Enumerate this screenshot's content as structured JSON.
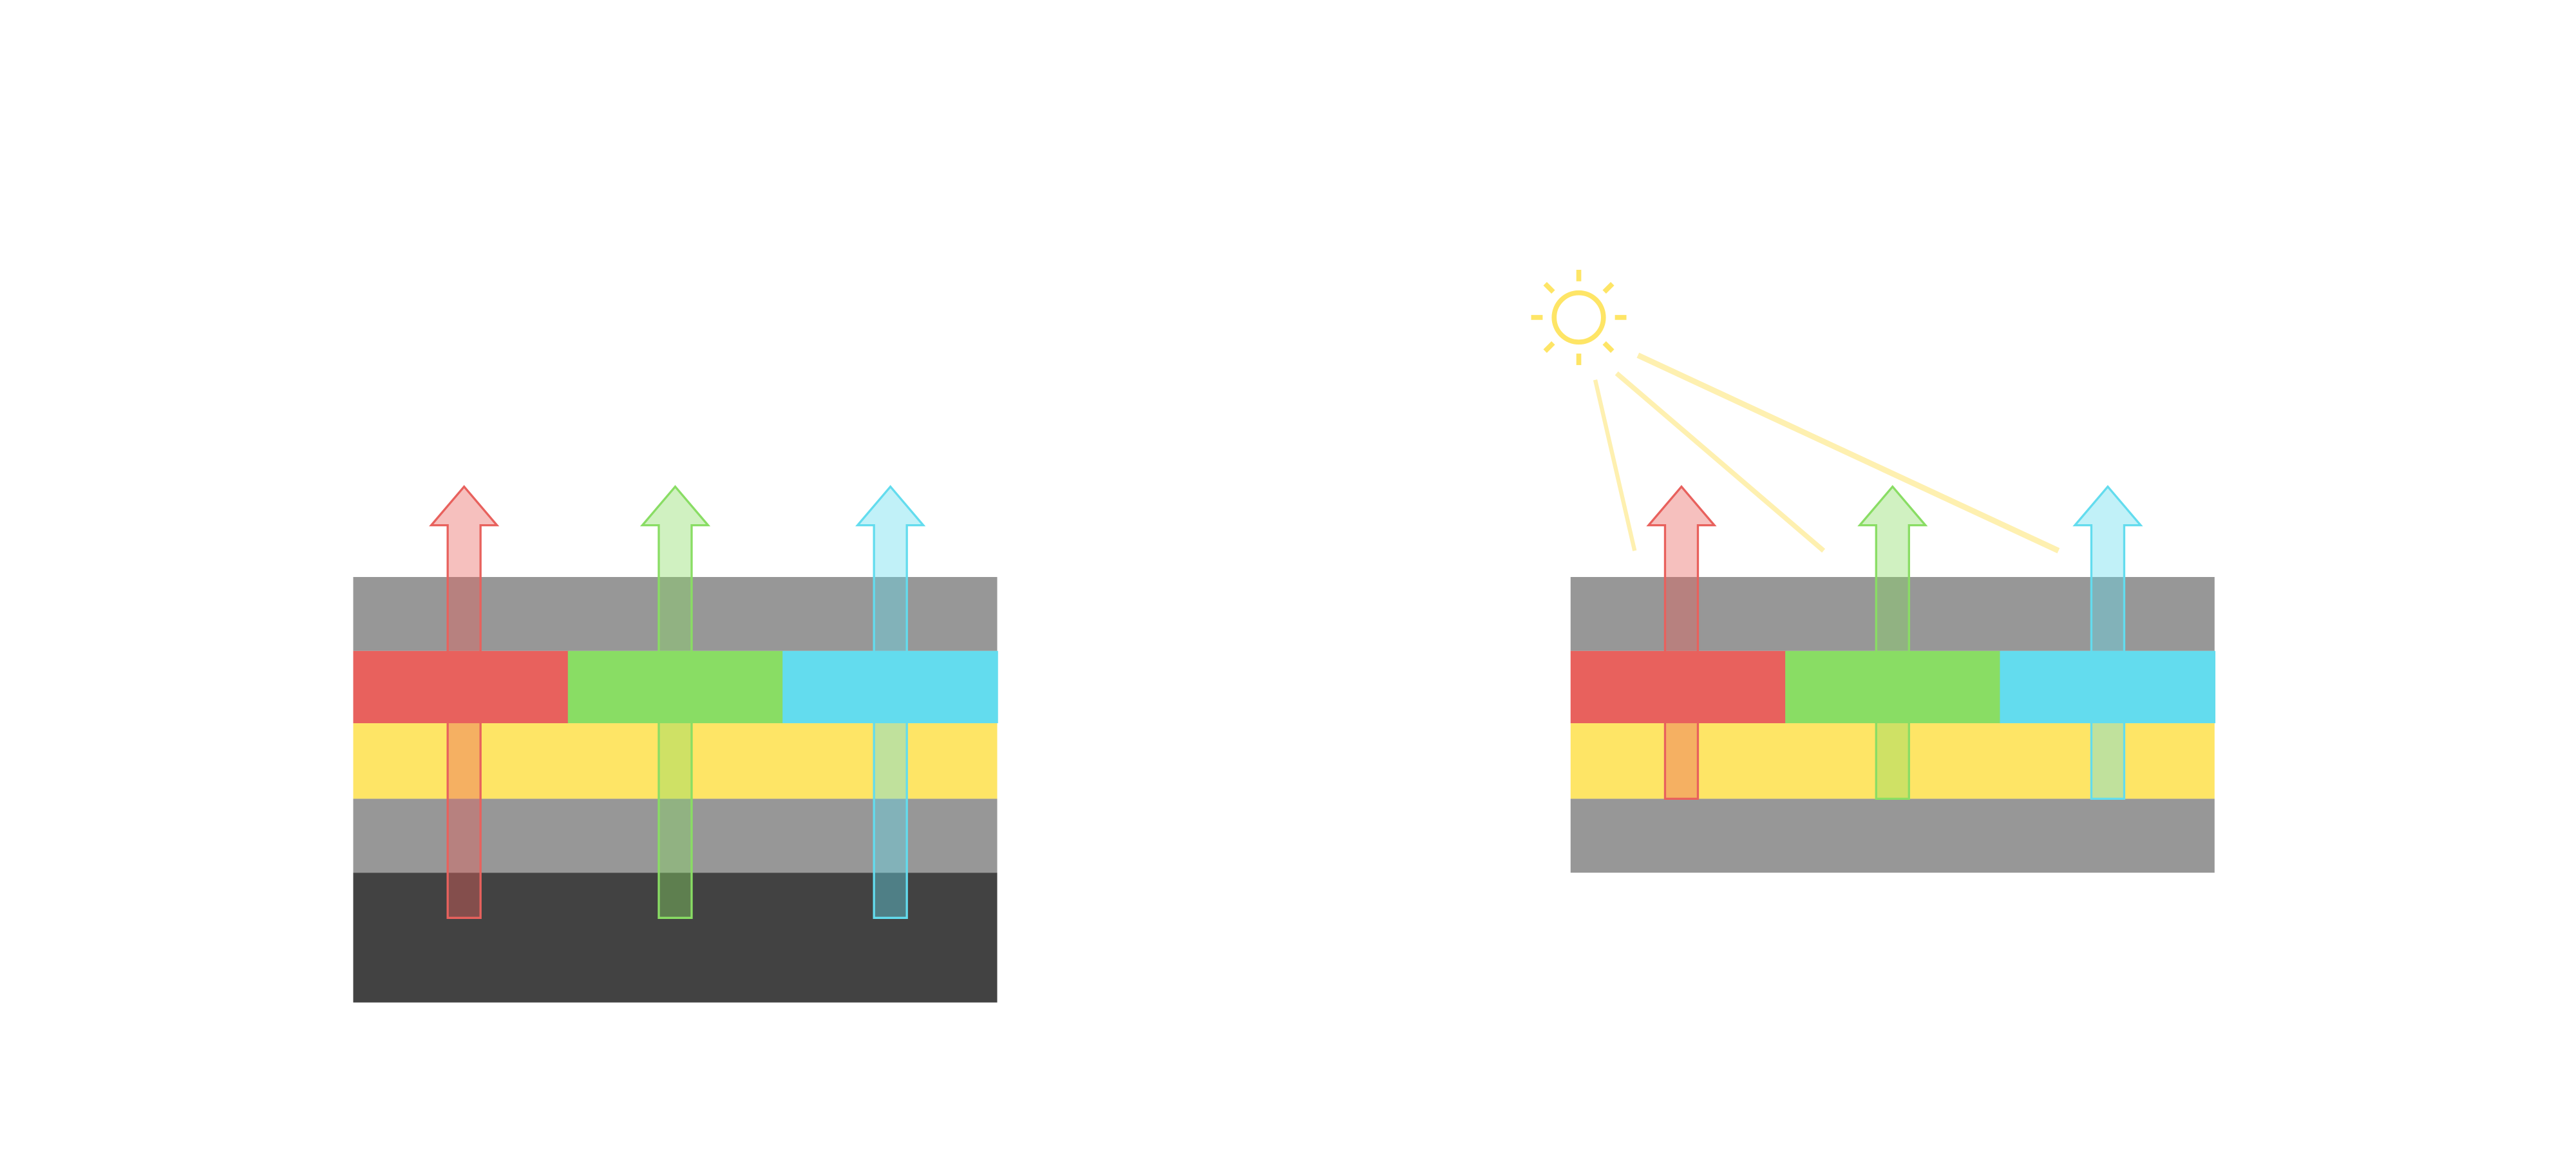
{
  "colors": {
    "background": "#ffffff",
    "layer_gray": "#979797",
    "layer_dark": "#424242",
    "layer_yellow": "#FEE566",
    "pixel_red": "#E8615D",
    "pixel_green": "#89DD64",
    "pixel_cyan": "#63DCEE",
    "sun": "#FEE566",
    "light_ray": "#FEF0B0"
  },
  "diagrams": [
    {
      "name": "left-stack",
      "layers": [
        "gray",
        "color-filter",
        "yellow",
        "gray",
        "dark"
      ],
      "arrows": [
        "red",
        "green",
        "cyan"
      ]
    },
    {
      "name": "right-stack",
      "layers": [
        "gray",
        "color-filter",
        "yellow",
        "gray"
      ],
      "arrows": [
        "red",
        "green",
        "cyan"
      ],
      "light_source": "sun-icon",
      "light_rays": 3
    }
  ]
}
